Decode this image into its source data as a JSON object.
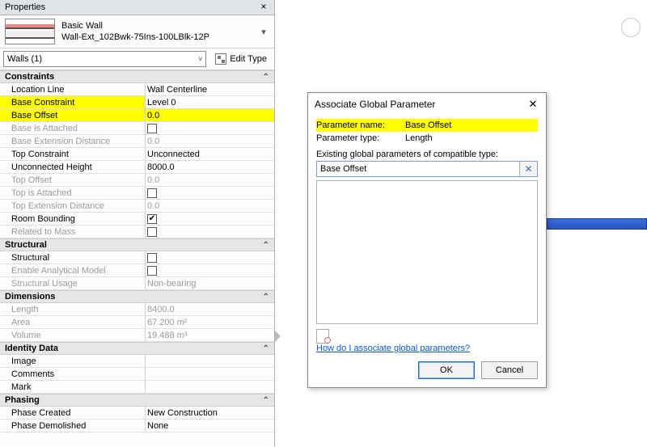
{
  "panel": {
    "title": "Properties",
    "type_family": "Basic Wall",
    "type_name": "Wall-Ext_102Bwk-75Ins-100LBlk-12P",
    "category": "Walls (1)",
    "edit_type": "Edit Type"
  },
  "groups": [
    {
      "name": "Constraints",
      "rows": [
        {
          "name": "Location Line",
          "value": "Wall Centerline",
          "kind": "text"
        },
        {
          "name": "Base Constraint",
          "value": "Level 0",
          "kind": "text",
          "hl_name": true
        },
        {
          "name": "Base Offset",
          "value": "0.0",
          "kind": "text",
          "hl_name": true,
          "hl_value": true
        },
        {
          "name": "Base is Attached",
          "value": "",
          "kind": "check",
          "checked": false,
          "disabled": true
        },
        {
          "name": "Base Extension Distance",
          "value": "0.0",
          "kind": "text",
          "disabled": true
        },
        {
          "name": "Top Constraint",
          "value": "Unconnected",
          "kind": "text"
        },
        {
          "name": "Unconnected Height",
          "value": "8000.0",
          "kind": "text"
        },
        {
          "name": "Top Offset",
          "value": "0.0",
          "kind": "text",
          "disabled": true
        },
        {
          "name": "Top is Attached",
          "value": "",
          "kind": "check",
          "checked": false,
          "disabled": true
        },
        {
          "name": "Top Extension Distance",
          "value": "0.0",
          "kind": "text",
          "disabled": true
        },
        {
          "name": "Room Bounding",
          "value": "",
          "kind": "check",
          "checked": true
        },
        {
          "name": "Related to Mass",
          "value": "",
          "kind": "check",
          "checked": false,
          "disabled": true
        }
      ]
    },
    {
      "name": "Structural",
      "rows": [
        {
          "name": "Structural",
          "value": "",
          "kind": "check",
          "checked": false
        },
        {
          "name": "Enable Analytical Model",
          "value": "",
          "kind": "check",
          "checked": false,
          "disabled": true
        },
        {
          "name": "Structural Usage",
          "value": "Non-bearing",
          "kind": "text",
          "disabled": true
        }
      ]
    },
    {
      "name": "Dimensions",
      "rows": [
        {
          "name": "Length",
          "value": "8400.0",
          "kind": "text",
          "disabled": true
        },
        {
          "name": "Area",
          "value": "67.200 m²",
          "kind": "text",
          "disabled": true
        },
        {
          "name": "Volume",
          "value": "19.488 m³",
          "kind": "text",
          "disabled": true
        }
      ]
    },
    {
      "name": "Identity Data",
      "rows": [
        {
          "name": "Image",
          "value": "",
          "kind": "text"
        },
        {
          "name": "Comments",
          "value": "",
          "kind": "text"
        },
        {
          "name": "Mark",
          "value": "",
          "kind": "text"
        }
      ]
    },
    {
      "name": "Phasing",
      "rows": [
        {
          "name": "Phase Created",
          "value": "New Construction",
          "kind": "text"
        },
        {
          "name": "Phase Demolished",
          "value": "None",
          "kind": "text"
        }
      ]
    }
  ],
  "dialog": {
    "title": "Associate Global Parameter",
    "param_name_label": "Parameter name:",
    "param_name_value": "Base Offset",
    "param_type_label": "Parameter type:",
    "param_type_value": "Length",
    "list_label": "Existing global parameters of compatible type:",
    "input_value": "Base Offset",
    "help_link": "How do I associate global parameters?",
    "ok": "OK",
    "cancel": "Cancel"
  }
}
